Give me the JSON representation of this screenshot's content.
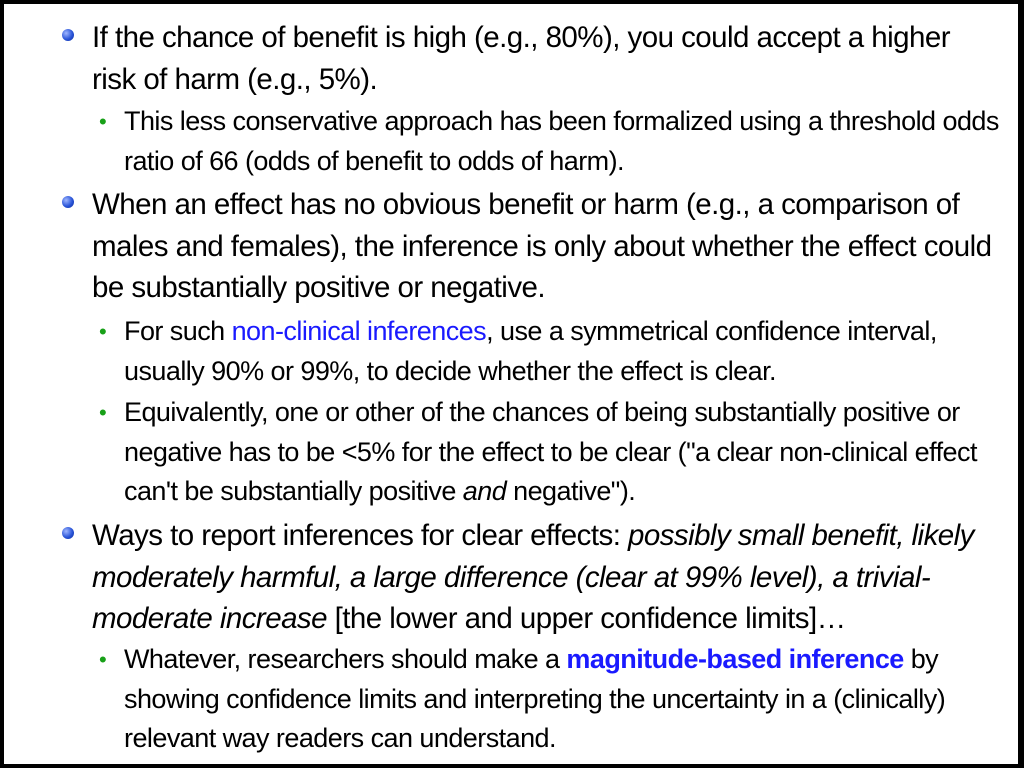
{
  "items": [
    {
      "level": 1,
      "segments": [
        {
          "text": "If the chance of benefit is high (e.g., 80%), you could accept a higher risk of harm (e.g., 5%)."
        }
      ]
    },
    {
      "level": 2,
      "segments": [
        {
          "text": "This less conservative approach has been formalized using a threshold odds ratio of 66 (odds of benefit to odds of harm)."
        }
      ]
    },
    {
      "level": 1,
      "segments": [
        {
          "text": "When an effect has no obvious benefit or harm (e.g., a comparison of males and females), the inference is only about whether the effect could be substantially positive or negative."
        }
      ]
    },
    {
      "level": 2,
      "segments": [
        {
          "text": "For such "
        },
        {
          "text": "non-clinical inferences",
          "style": "link"
        },
        {
          "text": ", use a symmetrical confidence interval, usually 90% or 99%, to decide whether the effect is clear."
        }
      ]
    },
    {
      "level": 2,
      "segments": [
        {
          "text": "Equivalently, one or other of the chances of being substantially positive or negative has to be <5% for the effect to be clear (\"a clear non-clinical effect can't be substantially positive "
        },
        {
          "text": "and",
          "style": "em"
        },
        {
          "text": " negative\")."
        }
      ]
    },
    {
      "level": 1,
      "segments": [
        {
          "text": "Ways to report inferences for clear effects: "
        },
        {
          "text": "possibly small benefit, likely moderately harmful, a large difference (clear at 99% level), a trivial-moderate increase",
          "style": "em"
        },
        {
          "text": " [the lower and upper confidence limits]…"
        }
      ]
    },
    {
      "level": 2,
      "segments": [
        {
          "text": "Whatever, researchers should make a "
        },
        {
          "text": "magnitude-based inference",
          "style": "bold-link"
        },
        {
          "text": " by showing confidence limits and interpreting the uncertainty in a (clinically) relevant way readers can understand."
        }
      ]
    }
  ]
}
